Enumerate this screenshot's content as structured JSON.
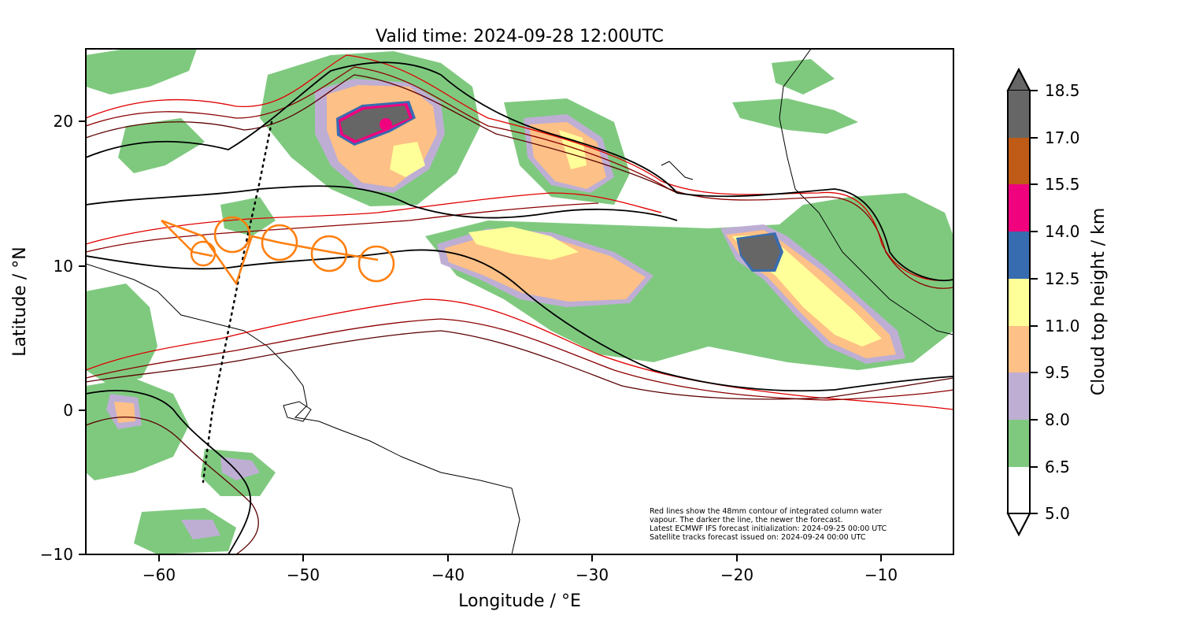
{
  "title": "Valid time: 2024-09-28 12:00UTC",
  "xlabel": "Longitude / °E",
  "ylabel": "Latitude / °N",
  "x_ticks": [
    "−60",
    "−50",
    "−40",
    "−30",
    "−20",
    "−10"
  ],
  "y_ticks": [
    "20",
    "10",
    "0",
    "−10"
  ],
  "colorbar": {
    "label": "Cloud top height / km",
    "ticks": [
      "18.5",
      "17.0",
      "15.5",
      "14.0",
      "12.5",
      "11.0",
      "9.5",
      "8.0",
      "6.5",
      "5.0"
    ],
    "colors": [
      "#666666",
      "#bf5b17",
      "#f0027f",
      "#386cb0",
      "#ffff99",
      "#fdc086",
      "#beaed4",
      "#7fc97f",
      "#ffffff"
    ]
  },
  "footnote": [
    "Red lines show the 48mm contour of integrated column water",
    "vapour. The darker the line, the newer the forecast.",
    "Latest ECMWF IFS forecast initialization: 2024-09-25 00:00 UTC",
    "Satellite tracks forecast issued on: 2024-09-24 00:00 UTC"
  ],
  "map": {
    "lon_range": [
      -65,
      -5
    ],
    "lat_range": [
      -10,
      25
    ],
    "flight_track_color": "#ff7f0e",
    "contour_colors": [
      "#000000",
      "#5a0000",
      "#8b0000",
      "#e00000"
    ]
  }
}
